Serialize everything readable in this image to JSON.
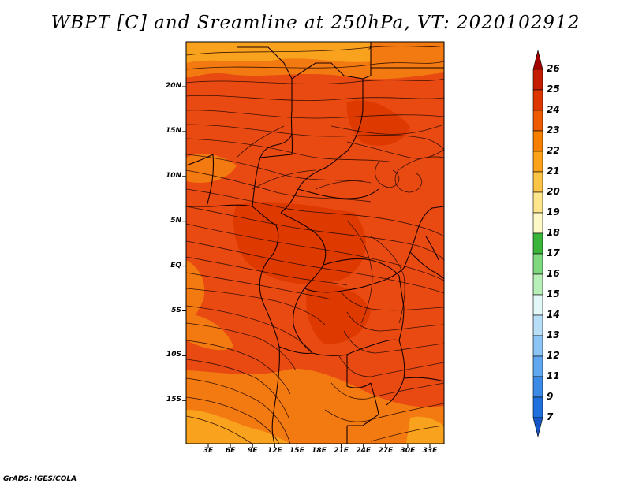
{
  "title": "WBPT [C] and Sreamline at 250hPa, VT: 2020102912",
  "credit": "GrADS: IGES/COLA",
  "map": {
    "lat_labels": [
      "20N",
      "15N",
      "10N",
      "5N",
      "EQ",
      "5S",
      "10S",
      "15S"
    ],
    "lon_labels": [
      "3E",
      "6E",
      "9E",
      "12E",
      "15E",
      "18E",
      "21E",
      "24E",
      "27E",
      "30E",
      "33E"
    ],
    "lat_range": [
      -20.5,
      24.5
    ],
    "lon_range": [
      0,
      35
    ]
  },
  "colorbar": {
    "labels": [
      "26",
      "25",
      "24",
      "23",
      "22",
      "21",
      "20",
      "19",
      "18",
      "17",
      "16",
      "15",
      "14",
      "13",
      "12",
      "11",
      "9",
      "7"
    ],
    "colors": [
      "#a50000",
      "#c41c00",
      "#de3600",
      "#ee5a00",
      "#f77f00",
      "#fba21a",
      "#fcc445",
      "#fde58c",
      "#fdf8c6",
      "#3ab53a",
      "#7fd77f",
      "#b8eeb8",
      "#e2f8f8",
      "#b7ddf7",
      "#8cc5f5",
      "#5fa8ef",
      "#3b8be6",
      "#1f6fde",
      "#1456c8"
    ]
  },
  "colors": {
    "field_main": "#e84a12",
    "field_dark": "#de3a00",
    "field_orange": "#f27a10",
    "field_light": "#f9a21e",
    "streamline": "#2a0a00",
    "border": "#1a0000"
  }
}
